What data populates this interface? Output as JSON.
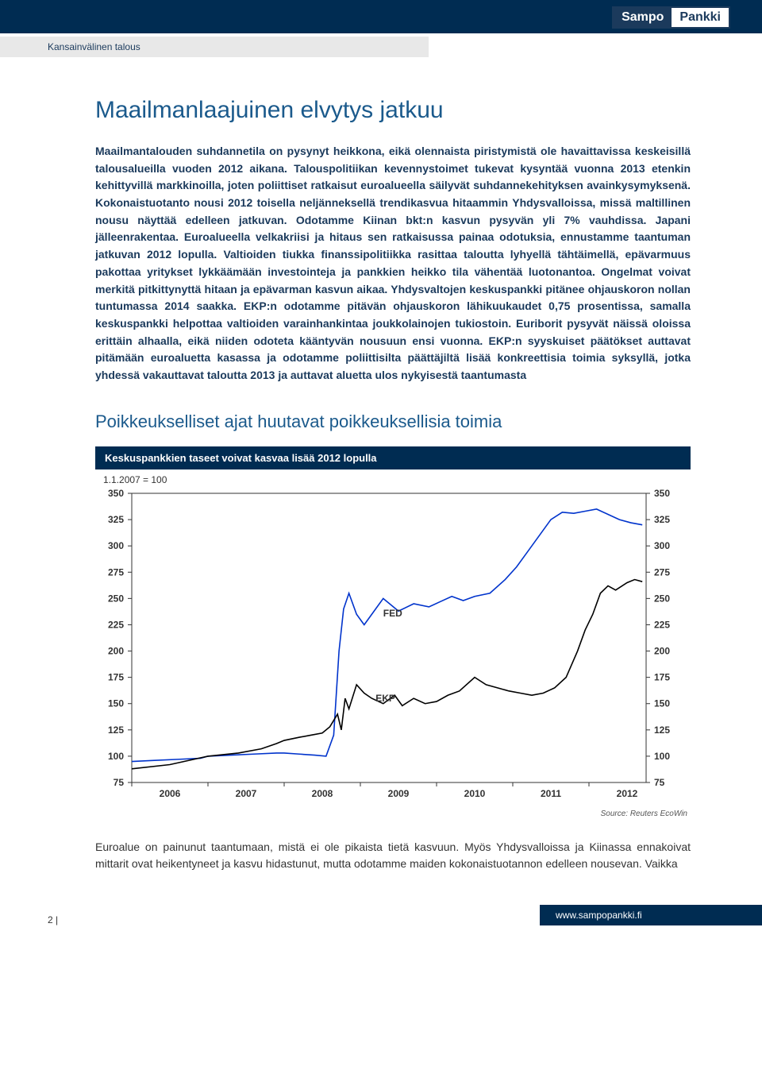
{
  "logo": {
    "left": "Sampo",
    "right": "Pankki"
  },
  "breadcrumb": "Kansainvälinen talous",
  "title": "Maailmanlaajuinen elvytys jatkuu",
  "intro": "Maailmantalouden suhdannetila on pysynyt heikkona, eikä olennaista piristymistä ole havaittavissa keskeisillä talousalueilla vuoden 2012 aikana. Talouspolitiikan kevennystoimet tukevat kysyntää vuonna 2013 etenkin kehittyvillä markkinoilla, joten poliittiset ratkaisut euroalueella säilyvät suhdannekehityksen avainkysymyksenä. Kokonaistuotanto nousi 2012 toisella neljänneksellä trendikasvua hitaammin Yhdysvalloissa, missä maltillinen nousu näyttää edelleen jatkuvan. Odotamme Kiinan bkt:n kasvun pysyvän yli 7% vauhdissa. Japani jälleenrakentaa. Euroalueella velkakriisi ja hitaus sen ratkaisussa painaa odotuksia, ennustamme taantuman jatkuvan 2012 lopulla. Valtioiden tiukka finanssipolitiikka rasittaa taloutta lyhyellä tähtäimellä, epävarmuus pakottaa yritykset lykkäämään investointeja ja pankkien heikko tila vähentää luotonantoa. Ongelmat voivat merkitä pitkittynyttä hitaan ja epävarman kasvun aikaa. Yhdysvaltojen keskuspankki pitänee ohjauskoron nollan tuntumassa 2014 saakka. EKP:n odotamme pitävän ohjauskoron lähikuukaudet 0,75 prosentissa, samalla keskuspankki helpottaa valtioiden varainhankintaa joukkolainojen tukiostoin. Euriborit pysyvät näissä oloissa erittäin alhaalla, eikä niiden odoteta kääntyvän nousuun ensi vuonna. EKP:n syyskuiset päätökset auttavat pitämään euroaluetta kasassa ja odotamme poliittisilta päättäjiltä lisää konkreettisia toimia syksyllä, jotka yhdessä vakauttavat taloutta 2013 ja auttavat aluetta ulos nykyisestä taantumasta",
  "subtitle": "Poikkeukselliset ajat huutavat poikkeuksellisia toimia",
  "chart": {
    "type": "line",
    "title_bar": "Keskuspankkien taseet voivat kasvaa lisää 2012 lopulla",
    "subheading": "1.1.2007 = 100",
    "ylim": [
      75,
      350
    ],
    "yticks": [
      75,
      100,
      125,
      150,
      175,
      200,
      225,
      250,
      275,
      300,
      325,
      350
    ],
    "x_years": [
      "2006",
      "2007",
      "2008",
      "2009",
      "2010",
      "2011",
      "2012"
    ],
    "x_domain": [
      2006,
      2012.75
    ],
    "line_width": 1.6,
    "tick_fontsize": 12,
    "label_fontsize": 12,
    "background_color": "#ffffff",
    "grid_color": "#d0d0d0",
    "axis_color": "#333333",
    "series": [
      {
        "name": "FED",
        "label": "FED",
        "color": "#0033cc",
        "label_pos": [
          2009.3,
          233
        ],
        "points": [
          [
            2006.0,
            95
          ],
          [
            2006.3,
            96
          ],
          [
            2006.6,
            97
          ],
          [
            2006.9,
            98
          ],
          [
            2007.0,
            100
          ],
          [
            2007.3,
            101
          ],
          [
            2007.6,
            102
          ],
          [
            2007.9,
            103
          ],
          [
            2008.0,
            103
          ],
          [
            2008.2,
            102
          ],
          [
            2008.4,
            101
          ],
          [
            2008.55,
            100
          ],
          [
            2008.65,
            120
          ],
          [
            2008.72,
            200
          ],
          [
            2008.78,
            240
          ],
          [
            2008.85,
            255
          ],
          [
            2008.95,
            235
          ],
          [
            2009.05,
            225
          ],
          [
            2009.15,
            235
          ],
          [
            2009.3,
            250
          ],
          [
            2009.5,
            238
          ],
          [
            2009.7,
            245
          ],
          [
            2009.9,
            242
          ],
          [
            2010.05,
            247
          ],
          [
            2010.2,
            252
          ],
          [
            2010.35,
            248
          ],
          [
            2010.5,
            252
          ],
          [
            2010.7,
            255
          ],
          [
            2010.9,
            268
          ],
          [
            2011.05,
            280
          ],
          [
            2011.2,
            295
          ],
          [
            2011.35,
            310
          ],
          [
            2011.5,
            325
          ],
          [
            2011.65,
            332
          ],
          [
            2011.8,
            331
          ],
          [
            2011.95,
            333
          ],
          [
            2012.1,
            335
          ],
          [
            2012.25,
            330
          ],
          [
            2012.4,
            325
          ],
          [
            2012.55,
            322
          ],
          [
            2012.7,
            320
          ]
        ]
      },
      {
        "name": "EKP",
        "label": "EKP",
        "color": "#000000",
        "label_pos": [
          2009.2,
          152
        ],
        "points": [
          [
            2006.0,
            88
          ],
          [
            2006.5,
            92
          ],
          [
            2007.0,
            100
          ],
          [
            2007.4,
            103
          ],
          [
            2007.7,
            107
          ],
          [
            2007.9,
            112
          ],
          [
            2008.0,
            115
          ],
          [
            2008.2,
            118
          ],
          [
            2008.35,
            120
          ],
          [
            2008.5,
            122
          ],
          [
            2008.6,
            128
          ],
          [
            2008.7,
            140
          ],
          [
            2008.75,
            125
          ],
          [
            2008.8,
            155
          ],
          [
            2008.85,
            145
          ],
          [
            2008.95,
            168
          ],
          [
            2009.05,
            160
          ],
          [
            2009.15,
            155
          ],
          [
            2009.3,
            150
          ],
          [
            2009.45,
            158
          ],
          [
            2009.55,
            148
          ],
          [
            2009.7,
            155
          ],
          [
            2009.85,
            150
          ],
          [
            2010.0,
            152
          ],
          [
            2010.15,
            158
          ],
          [
            2010.3,
            162
          ],
          [
            2010.5,
            175
          ],
          [
            2010.65,
            168
          ],
          [
            2010.8,
            165
          ],
          [
            2010.95,
            162
          ],
          [
            2011.1,
            160
          ],
          [
            2011.25,
            158
          ],
          [
            2011.4,
            160
          ],
          [
            2011.55,
            165
          ],
          [
            2011.7,
            175
          ],
          [
            2011.85,
            200
          ],
          [
            2011.95,
            220
          ],
          [
            2012.05,
            235
          ],
          [
            2012.15,
            255
          ],
          [
            2012.25,
            262
          ],
          [
            2012.35,
            258
          ],
          [
            2012.5,
            265
          ],
          [
            2012.6,
            268
          ],
          [
            2012.7,
            266
          ]
        ]
      }
    ],
    "source": "Source: Reuters EcoWin"
  },
  "body_after": "Euroalue on painunut taantumaan, mistä ei ole pikaista tietä kasvuun. Myös Yhdysvalloissa ja Kiinassa ennakoivat mittarit ovat heikentyneet ja kasvu hidastunut, mutta odotamme maiden kokonaistuotannon edelleen nousevan. Vaikka",
  "footer": {
    "page": "2 |",
    "url": "www.sampopankki.fi"
  }
}
